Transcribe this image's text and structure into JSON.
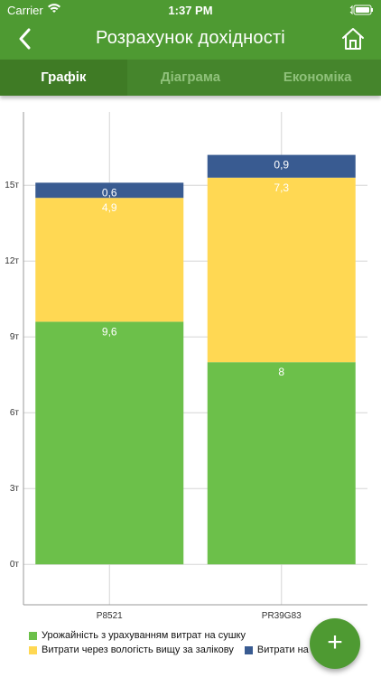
{
  "status_bar": {
    "carrier": "Carrier",
    "time": "1:37 PM"
  },
  "nav": {
    "title": "Розрахунок дохідності",
    "back_icon": "chevron-left-icon",
    "home_icon": "home-icon"
  },
  "tabs": [
    {
      "label": "Графік",
      "active": true
    },
    {
      "label": "Діаграма",
      "active": false
    },
    {
      "label": "Економіка",
      "active": false
    }
  ],
  "colors": {
    "primary": "#4e9a32",
    "tab_bg": "#45852c",
    "tab_active": "#3f7b25",
    "green": "#6cc04a",
    "yellow": "#ffd853",
    "blue": "#395b91"
  },
  "chart_data": {
    "type": "bar",
    "stacked": true,
    "categories": [
      "P8521",
      "PR39G83"
    ],
    "series": [
      {
        "name": "Урожайність з урахуванням витрат на сушку",
        "color": "#6cc04a",
        "values": [
          9.6,
          8
        ],
        "labels": [
          "9,6",
          "8"
        ]
      },
      {
        "name": "Витрати через вологість вищу за залікову",
        "color": "#ffd853",
        "values": [
          4.9,
          7.3
        ],
        "labels": [
          "4,9",
          "7,3"
        ]
      },
      {
        "name": "Витрати на сушку",
        "color": "#395b91",
        "values": [
          0.6,
          0.9
        ],
        "labels": [
          "0,6",
          "0,9"
        ]
      }
    ],
    "yticks": [
      0,
      3,
      6,
      9,
      12,
      15
    ],
    "ytick_labels": [
      "0т",
      "3т",
      "6т",
      "9т",
      "12т",
      "15т"
    ],
    "ylim": [
      -1.6,
      17.9
    ],
    "grid": true,
    "legend_position": "bottom"
  },
  "fab": {
    "label": "+"
  }
}
